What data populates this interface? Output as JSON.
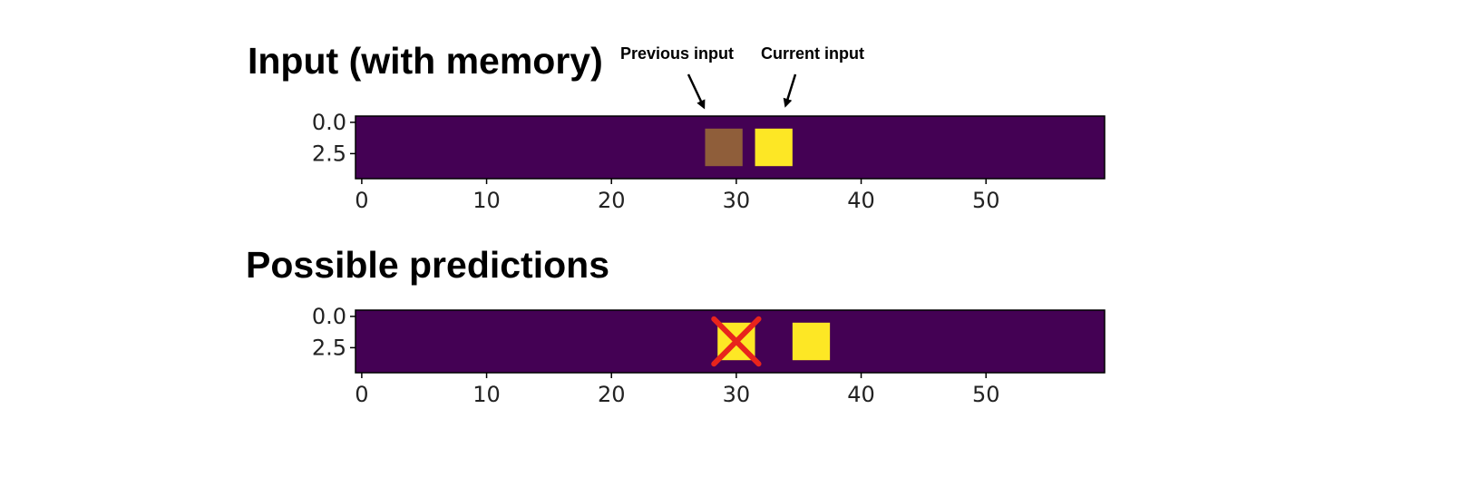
{
  "annotations": {
    "previous_label": "Previous input",
    "current_label": "Current input"
  },
  "colors": {
    "background": "#440154",
    "current": "#fde725",
    "previous": "#8f5e3a",
    "wrong_mark": "#e8241c",
    "axis": "#000000"
  },
  "chart_data": [
    {
      "type": "heatmap",
      "title": "Input (with memory)",
      "xlim": [
        -0.5,
        59.5
      ],
      "ylim": [
        4.5,
        -0.5
      ],
      "xticks": [
        0,
        10,
        20,
        30,
        40,
        50
      ],
      "yticks": [
        0.0,
        2.5
      ],
      "ytick_labels": [
        "0.0",
        "2.5"
      ],
      "xtick_labels": [
        "0",
        "10",
        "20",
        "30",
        "40",
        "50"
      ],
      "grid": false,
      "cells": [
        {
          "role": "previous",
          "x_start": 27.5,
          "x_end": 30.5,
          "y_start": 0.5,
          "y_end": 3.5
        },
        {
          "role": "current",
          "x_start": 31.5,
          "x_end": 34.5,
          "y_start": 0.5,
          "y_end": 3.5
        }
      ]
    },
    {
      "type": "heatmap",
      "title": "Possible predictions",
      "xlim": [
        -0.5,
        59.5
      ],
      "ylim": [
        4.5,
        -0.5
      ],
      "xticks": [
        0,
        10,
        20,
        30,
        40,
        50
      ],
      "yticks": [
        0.0,
        2.5
      ],
      "ytick_labels": [
        "0.0",
        "2.5"
      ],
      "xtick_labels": [
        "0",
        "10",
        "20",
        "30",
        "40",
        "50"
      ],
      "grid": false,
      "cells": [
        {
          "role": "current",
          "x_start": 28.5,
          "x_end": 31.5,
          "y_start": 0.5,
          "y_end": 3.5,
          "crossed_out": true
        },
        {
          "role": "current",
          "x_start": 34.5,
          "x_end": 37.5,
          "y_start": 0.5,
          "y_end": 3.5
        }
      ]
    }
  ]
}
